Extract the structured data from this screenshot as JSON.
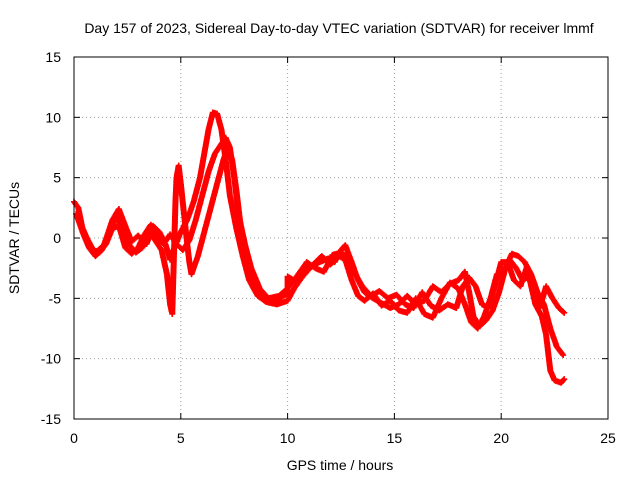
{
  "chart_data": {
    "type": "scatter",
    "title": "Day 157 of 2023, Sidereal Day-to-day VTEC variation (SDTVAR) for receiver lmmf",
    "xlabel": "GPS time / hours",
    "ylabel": "SDTVAR / TECUs",
    "xlim": [
      0,
      25
    ],
    "ylim": [
      -15,
      15
    ],
    "x_ticks": [
      0,
      5,
      10,
      15,
      20,
      25
    ],
    "x_tick_labels": [
      "0",
      "5",
      "10",
      "15",
      "20",
      "25"
    ],
    "y_ticks": [
      -15,
      -10,
      -5,
      0,
      5,
      10,
      15
    ],
    "y_tick_labels": [
      "-15",
      "-10",
      "-5",
      "0",
      "5",
      "10",
      "15"
    ],
    "grid": true,
    "marker": "plus",
    "series": [
      {
        "name": "track-1",
        "color": "#ff0000",
        "points": [
          [
            0.0,
            3.0
          ],
          [
            0.2,
            2.5
          ],
          [
            0.4,
            0.8
          ],
          [
            0.7,
            -0.5
          ],
          [
            1.0,
            -1.2
          ],
          [
            1.4,
            -0.6
          ],
          [
            1.8,
            1.5
          ],
          [
            2.1,
            2.4
          ],
          [
            2.4,
            1.0
          ],
          [
            2.7,
            -0.3
          ],
          [
            3.0,
            0.2
          ],
          [
            3.4,
            -0.5
          ],
          [
            3.7,
            1.0
          ],
          [
            4.0,
            0.5
          ],
          [
            4.3,
            -0.6
          ],
          [
            4.5,
            -1.8
          ],
          [
            4.7,
            -0.8
          ],
          [
            5.0,
            0.5
          ],
          [
            5.3,
            1.5
          ],
          [
            5.6,
            3.0
          ],
          [
            5.9,
            5.0
          ],
          [
            6.1,
            7.0
          ],
          [
            6.3,
            9.0
          ],
          [
            6.5,
            10.4
          ],
          [
            6.7,
            10.3
          ],
          [
            6.9,
            9.0
          ],
          [
            7.1,
            6.5
          ],
          [
            7.3,
            3.5
          ],
          [
            7.6,
            0.8
          ],
          [
            7.9,
            -1.5
          ],
          [
            8.2,
            -3.5
          ],
          [
            8.6,
            -4.8
          ],
          [
            9.0,
            -5.3
          ],
          [
            9.5,
            -5.5
          ],
          [
            10.0,
            -5.2
          ],
          [
            10.3,
            -4.2
          ],
          [
            10.7,
            -3.2
          ],
          [
            11.1,
            -2.4
          ],
          [
            11.5,
            -2.0
          ],
          [
            11.9,
            -1.7
          ],
          [
            12.2,
            -2.0
          ],
          [
            12.5,
            -1.0
          ],
          [
            12.7,
            -0.6
          ],
          [
            13.0,
            -2.0
          ],
          [
            13.3,
            -3.5
          ],
          [
            13.6,
            -4.5
          ],
          [
            14.0,
            -5.0
          ],
          [
            14.4,
            -5.4
          ],
          [
            14.8,
            -5.8
          ],
          [
            15.2,
            -5.5
          ],
          [
            15.6,
            -4.8
          ],
          [
            16.0,
            -5.5
          ],
          [
            16.4,
            -5.2
          ],
          [
            16.8,
            -4.0
          ],
          [
            17.2,
            -4.5
          ],
          [
            17.6,
            -3.8
          ],
          [
            18.0,
            -3.5
          ],
          [
            18.3,
            -2.8
          ],
          [
            18.5,
            -4.5
          ],
          [
            18.7,
            -6.5
          ],
          [
            19.0,
            -7.3
          ],
          [
            19.3,
            -6.8
          ],
          [
            19.6,
            -6.0
          ],
          [
            19.9,
            -4.5
          ],
          [
            20.2,
            -2.5
          ],
          [
            20.5,
            -1.3
          ],
          [
            20.8,
            -1.5
          ],
          [
            21.1,
            -2.0
          ],
          [
            21.4,
            -3.0
          ],
          [
            21.7,
            -4.5
          ],
          [
            22.0,
            -5.5
          ],
          [
            22.3,
            -7.5
          ],
          [
            22.6,
            -9.0
          ],
          [
            22.9,
            -9.7
          ]
        ]
      },
      {
        "name": "track-2",
        "color": "#ff0000",
        "points": [
          [
            0.1,
            2.0
          ],
          [
            0.4,
            0.5
          ],
          [
            0.7,
            -0.8
          ],
          [
            1.0,
            -1.5
          ],
          [
            1.3,
            -1.0
          ],
          [
            1.6,
            0.3
          ],
          [
            2.0,
            1.8
          ],
          [
            2.3,
            0.5
          ],
          [
            2.6,
            -0.6
          ],
          [
            2.9,
            -1.2
          ],
          [
            3.2,
            -0.8
          ],
          [
            3.5,
            0.6
          ],
          [
            3.8,
            -0.2
          ],
          [
            4.1,
            -1.0
          ],
          [
            4.35,
            -3.0
          ],
          [
            4.5,
            -5.5
          ],
          [
            4.6,
            -6.3
          ],
          [
            4.75,
            3.0
          ],
          [
            4.8,
            5.0
          ],
          [
            4.9,
            6.0
          ],
          [
            5.0,
            4.5
          ],
          [
            5.15,
            2.0
          ],
          [
            5.3,
            -0.5
          ],
          [
            5.4,
            -2.0
          ],
          [
            5.5,
            -3.0
          ],
          [
            5.8,
            -1.5
          ],
          [
            6.1,
            0.5
          ],
          [
            6.4,
            2.5
          ],
          [
            6.7,
            4.5
          ],
          [
            7.0,
            6.5
          ],
          [
            7.2,
            7.5
          ],
          [
            7.4,
            6.5
          ],
          [
            7.6,
            4.0
          ],
          [
            7.8,
            1.0
          ],
          [
            8.1,
            -1.5
          ],
          [
            8.4,
            -3.5
          ],
          [
            8.8,
            -4.7
          ],
          [
            9.2,
            -5.1
          ],
          [
            9.6,
            -5.0
          ],
          [
            10.0,
            -4.6
          ],
          [
            10.0,
            -3.2
          ],
          [
            10.4,
            -3.6
          ],
          [
            10.8,
            -2.6
          ],
          [
            11.2,
            -2.2
          ],
          [
            11.6,
            -1.5
          ],
          [
            12.0,
            -2.2
          ],
          [
            12.4,
            -1.5
          ],
          [
            12.7,
            -1.8
          ],
          [
            13.0,
            -3.5
          ],
          [
            13.3,
            -4.8
          ],
          [
            13.6,
            -5.2
          ],
          [
            14.0,
            -4.6
          ],
          [
            14.4,
            -5.6
          ],
          [
            14.8,
            -5.2
          ],
          [
            15.2,
            -6.0
          ],
          [
            15.6,
            -6.2
          ],
          [
            16.0,
            -5.0
          ],
          [
            16.4,
            -6.3
          ],
          [
            16.8,
            -6.6
          ],
          [
            17.2,
            -5.0
          ],
          [
            17.6,
            -3.7
          ],
          [
            18.0,
            -4.2
          ],
          [
            18.3,
            -5.5
          ],
          [
            18.6,
            -7.0
          ],
          [
            18.9,
            -7.5
          ],
          [
            19.2,
            -6.5
          ],
          [
            19.5,
            -5.0
          ],
          [
            19.8,
            -3.0
          ],
          [
            20.1,
            -2.8
          ],
          [
            20.4,
            -1.8
          ],
          [
            20.7,
            -2.5
          ],
          [
            21.0,
            -3.5
          ],
          [
            21.3,
            -3.2
          ],
          [
            21.6,
            -5.5
          ],
          [
            21.9,
            -6.5
          ],
          [
            22.1,
            -8.0
          ],
          [
            22.3,
            -11.0
          ],
          [
            22.5,
            -11.8
          ],
          [
            22.8,
            -12.0
          ],
          [
            22.95,
            -11.7
          ]
        ]
      },
      {
        "name": "track-3",
        "color": "#ff0000",
        "points": [
          [
            0.3,
            1.2
          ],
          [
            0.6,
            0.0
          ],
          [
            0.9,
            -1.0
          ],
          [
            1.2,
            -1.2
          ],
          [
            1.5,
            -0.5
          ],
          [
            1.8,
            0.8
          ],
          [
            2.1,
            1.0
          ],
          [
            2.4,
            -0.8
          ],
          [
            2.7,
            -1.3
          ],
          [
            3.0,
            -0.8
          ],
          [
            3.3,
            0.3
          ],
          [
            3.6,
            1.1
          ],
          [
            3.9,
            0.0
          ],
          [
            4.2,
            -0.5
          ],
          [
            4.5,
            0.3
          ],
          [
            4.8,
            -0.5
          ],
          [
            5.1,
            -1.0
          ],
          [
            5.4,
            -0.2
          ],
          [
            5.7,
            1.5
          ],
          [
            6.0,
            3.5
          ],
          [
            6.3,
            5.5
          ],
          [
            6.6,
            7.0
          ],
          [
            6.9,
            7.8
          ],
          [
            7.1,
            8.3
          ],
          [
            7.3,
            7.5
          ],
          [
            7.5,
            5.0
          ],
          [
            7.7,
            2.0
          ],
          [
            8.0,
            -0.5
          ],
          [
            8.3,
            -2.5
          ],
          [
            8.7,
            -4.2
          ],
          [
            9.1,
            -5.0
          ],
          [
            9.6,
            -4.8
          ],
          [
            10.1,
            -4.0
          ],
          [
            10.5,
            -3.0
          ],
          [
            10.9,
            -2.0
          ],
          [
            11.3,
            -2.5
          ],
          [
            11.7,
            -2.8
          ],
          [
            12.1,
            -1.4
          ],
          [
            12.5,
            -1.2
          ],
          [
            12.8,
            -1.6
          ],
          [
            13.1,
            -2.8
          ],
          [
            13.5,
            -4.0
          ],
          [
            13.9,
            -4.8
          ],
          [
            14.3,
            -4.4
          ],
          [
            14.7,
            -5.0
          ],
          [
            15.1,
            -4.7
          ],
          [
            15.5,
            -5.5
          ],
          [
            15.9,
            -5.8
          ],
          [
            16.3,
            -4.5
          ],
          [
            16.7,
            -5.6
          ],
          [
            17.1,
            -6.0
          ],
          [
            17.5,
            -5.5
          ],
          [
            17.9,
            -5.8
          ],
          [
            18.2,
            -4.0
          ],
          [
            18.5,
            -3.3
          ],
          [
            18.8,
            -4.0
          ],
          [
            19.1,
            -5.5
          ],
          [
            19.4,
            -5.8
          ],
          [
            19.7,
            -4.0
          ],
          [
            20.0,
            -2.0
          ],
          [
            20.3,
            -2.0
          ],
          [
            20.6,
            -3.5
          ],
          [
            20.9,
            -4.0
          ],
          [
            21.2,
            -2.4
          ],
          [
            21.5,
            -4.0
          ],
          [
            21.8,
            -5.8
          ],
          [
            22.1,
            -4.0
          ],
          [
            22.4,
            -5.0
          ],
          [
            22.7,
            -5.8
          ],
          [
            22.95,
            -6.2
          ]
        ]
      }
    ]
  }
}
